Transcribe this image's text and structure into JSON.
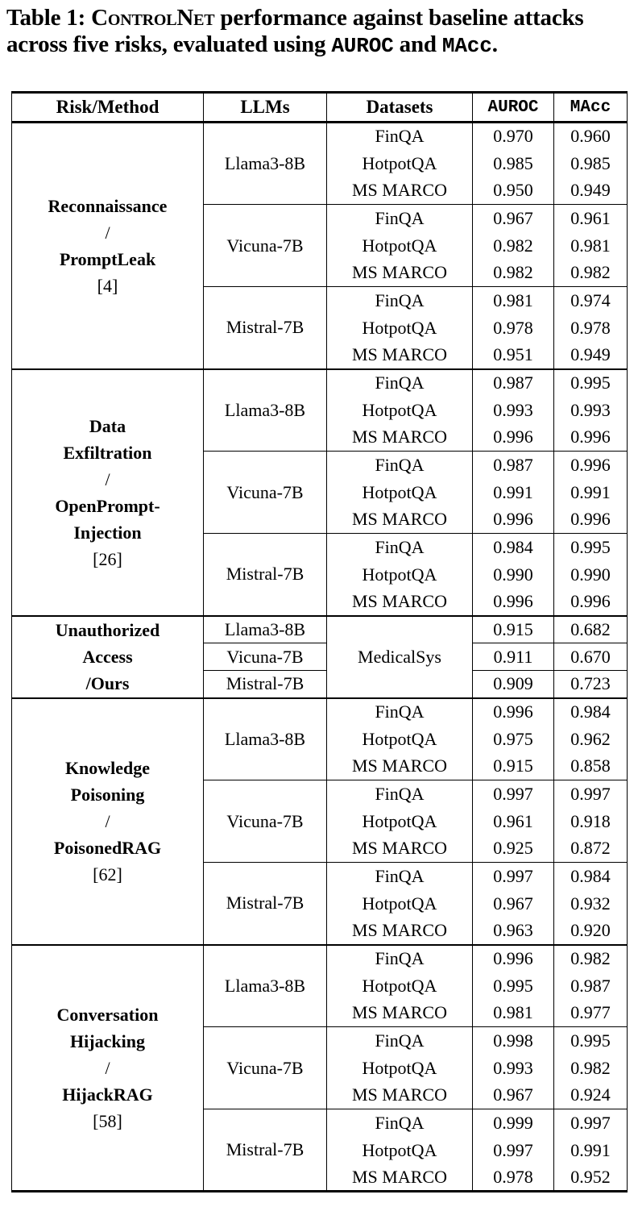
{
  "caption": {
    "line1": {
      "prefix": "Table 1: ",
      "smallcaps": "ControlNet",
      "suffix": " performance against baseline attacks"
    },
    "line2": {
      "prefix": "across five risks, evaluated using ",
      "metric1": "AUROC",
      "mid": " and ",
      "metric2": "MAcc",
      "end": "."
    }
  },
  "table": {
    "headers": [
      "Risk/Method",
      "LLMs",
      "Datasets",
      "AUROC",
      "MAcc"
    ],
    "groups": [
      {
        "risk_lines": [
          {
            "text": "Reconnaissance",
            "bold": true
          },
          {
            "text": "/",
            "bold": false
          },
          {
            "text": "PromptLeak",
            "bold": true
          },
          {
            "text": "[4]",
            "bold": false
          }
        ],
        "blocks": [
          {
            "llm": "Llama3-8B",
            "rows": [
              {
                "dataset": "FinQA",
                "auroc": "0.970",
                "macc": "0.960"
              },
              {
                "dataset": "HotpotQA",
                "auroc": "0.985",
                "macc": "0.985"
              },
              {
                "dataset": "MS MARCO",
                "auroc": "0.950",
                "macc": "0.949"
              }
            ]
          },
          {
            "llm": "Vicuna-7B",
            "rows": [
              {
                "dataset": "FinQA",
                "auroc": "0.967",
                "macc": "0.961"
              },
              {
                "dataset": "HotpotQA",
                "auroc": "0.982",
                "macc": "0.981"
              },
              {
                "dataset": "MS MARCO",
                "auroc": "0.982",
                "macc": "0.982"
              }
            ]
          },
          {
            "llm": "Mistral-7B",
            "rows": [
              {
                "dataset": "FinQA",
                "auroc": "0.981",
                "macc": "0.974"
              },
              {
                "dataset": "HotpotQA",
                "auroc": "0.978",
                "macc": "0.978"
              },
              {
                "dataset": "MS MARCO",
                "auroc": "0.951",
                "macc": "0.949"
              }
            ]
          }
        ]
      },
      {
        "risk_lines": [
          {
            "text": "Data",
            "bold": true
          },
          {
            "text": "Exfiltration",
            "bold": true
          },
          {
            "text": "/",
            "bold": false
          },
          {
            "text": "OpenPrompt-",
            "bold": true
          },
          {
            "text": "Injection",
            "bold": true
          },
          {
            "text": "[26]",
            "bold": false
          }
        ],
        "blocks": [
          {
            "llm": "Llama3-8B",
            "rows": [
              {
                "dataset": "FinQA",
                "auroc": "0.987",
                "macc": "0.995"
              },
              {
                "dataset": "HotpotQA",
                "auroc": "0.993",
                "macc": "0.993"
              },
              {
                "dataset": "MS MARCO",
                "auroc": "0.996",
                "macc": "0.996"
              }
            ]
          },
          {
            "llm": "Vicuna-7B",
            "rows": [
              {
                "dataset": "FinQA",
                "auroc": "0.987",
                "macc": "0.996"
              },
              {
                "dataset": "HotpotQA",
                "auroc": "0.991",
                "macc": "0.991"
              },
              {
                "dataset": "MS MARCO",
                "auroc": "0.996",
                "macc": "0.996"
              }
            ]
          },
          {
            "llm": "Mistral-7B",
            "rows": [
              {
                "dataset": "FinQA",
                "auroc": "0.984",
                "macc": "0.995"
              },
              {
                "dataset": "HotpotQA",
                "auroc": "0.990",
                "macc": "0.990"
              },
              {
                "dataset": "MS MARCO",
                "auroc": "0.996",
                "macc": "0.996"
              }
            ]
          }
        ]
      },
      {
        "risk_lines": [
          {
            "text": "Unauthorized",
            "bold": true
          },
          {
            "text": "Access",
            "bold": true
          },
          {
            "text": "/Ours",
            "bold": true
          }
        ],
        "shared_dataset": "MedicalSys",
        "blocks": [
          {
            "llm": "Llama3-8B",
            "rows": [
              {
                "auroc": "0.915",
                "macc": "0.682"
              }
            ]
          },
          {
            "llm": "Vicuna-7B",
            "rows": [
              {
                "auroc": "0.911",
                "macc": "0.670"
              }
            ]
          },
          {
            "llm": "Mistral-7B",
            "rows": [
              {
                "auroc": "0.909",
                "macc": "0.723"
              }
            ]
          }
        ]
      },
      {
        "risk_lines": [
          {
            "text": "Knowledge",
            "bold": true
          },
          {
            "text": "Poisoning",
            "bold": true
          },
          {
            "text": "/",
            "bold": false
          },
          {
            "text": "PoisonedRAG",
            "bold": true
          },
          {
            "text": "[62]",
            "bold": false
          }
        ],
        "blocks": [
          {
            "llm": "Llama3-8B",
            "rows": [
              {
                "dataset": "FinQA",
                "auroc": "0.996",
                "macc": "0.984"
              },
              {
                "dataset": "HotpotQA",
                "auroc": "0.975",
                "macc": "0.962"
              },
              {
                "dataset": "MS MARCO",
                "auroc": "0.915",
                "macc": "0.858"
              }
            ]
          },
          {
            "llm": "Vicuna-7B",
            "rows": [
              {
                "dataset": "FinQA",
                "auroc": "0.997",
                "macc": "0.997"
              },
              {
                "dataset": "HotpotQA",
                "auroc": "0.961",
                "macc": "0.918"
              },
              {
                "dataset": "MS MARCO",
                "auroc": "0.925",
                "macc": "0.872"
              }
            ]
          },
          {
            "llm": "Mistral-7B",
            "rows": [
              {
                "dataset": "FinQA",
                "auroc": "0.997",
                "macc": "0.984"
              },
              {
                "dataset": "HotpotQA",
                "auroc": "0.967",
                "macc": "0.932"
              },
              {
                "dataset": "MS MARCO",
                "auroc": "0.963",
                "macc": "0.920"
              }
            ]
          }
        ]
      },
      {
        "risk_lines": [
          {
            "text": "Conversation",
            "bold": true
          },
          {
            "text": "Hijacking",
            "bold": true
          },
          {
            "text": "/",
            "bold": false
          },
          {
            "text": "HijackRAG",
            "bold": true
          },
          {
            "text": "[58]",
            "bold": false
          }
        ],
        "blocks": [
          {
            "llm": "Llama3-8B",
            "rows": [
              {
                "dataset": "FinQA",
                "auroc": "0.996",
                "macc": "0.982"
              },
              {
                "dataset": "HotpotQA",
                "auroc": "0.995",
                "macc": "0.987"
              },
              {
                "dataset": "MS MARCO",
                "auroc": "0.981",
                "macc": "0.977"
              }
            ]
          },
          {
            "llm": "Vicuna-7B",
            "rows": [
              {
                "dataset": "FinQA",
                "auroc": "0.998",
                "macc": "0.995"
              },
              {
                "dataset": "HotpotQA",
                "auroc": "0.993",
                "macc": "0.982"
              },
              {
                "dataset": "MS MARCO",
                "auroc": "0.967",
                "macc": "0.924"
              }
            ]
          },
          {
            "llm": "Mistral-7B",
            "rows": [
              {
                "dataset": "FinQA",
                "auroc": "0.999",
                "macc": "0.997"
              },
              {
                "dataset": "HotpotQA",
                "auroc": "0.997",
                "macc": "0.991"
              },
              {
                "dataset": "MS MARCO",
                "auroc": "0.978",
                "macc": "0.952"
              }
            ]
          }
        ]
      }
    ]
  }
}
